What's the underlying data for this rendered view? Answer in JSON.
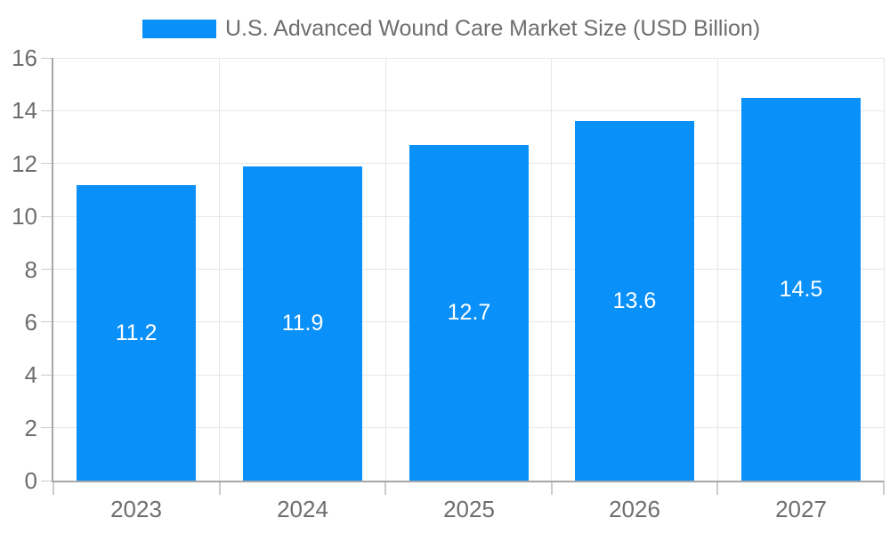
{
  "legend": {
    "label": "U.S. Advanced Wound Care Market Size (USD Billion)"
  },
  "colors": {
    "bar": "#0a90f9",
    "axis_line": "#a6a6a6",
    "gridline": "#e6e6e6",
    "tick": "#cccccc",
    "axis_label_text": "#6e6e6e",
    "data_label_text": "#ffffff",
    "background": "#ffffff"
  },
  "chart_data": {
    "type": "bar",
    "title": "U.S. Advanced Wound Care Market Size (USD Billion)",
    "categories": [
      "2023",
      "2024",
      "2025",
      "2026",
      "2027"
    ],
    "values": [
      11.2,
      11.9,
      12.7,
      13.6,
      14.5
    ],
    "data_labels": [
      "11.2",
      "11.9",
      "12.7",
      "13.6",
      "14.5"
    ],
    "xlabel": "",
    "ylabel": "",
    "ylim": [
      0,
      16
    ],
    "ytick_step": 2,
    "ytick_labels": [
      "0",
      "2",
      "4",
      "6",
      "8",
      "10",
      "12",
      "14",
      "16"
    ],
    "grid": true,
    "legend_position": "top",
    "data_label_position": "inside-center"
  }
}
